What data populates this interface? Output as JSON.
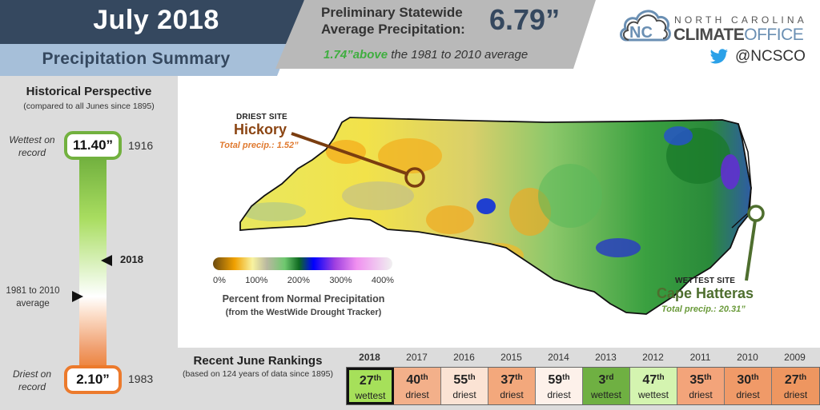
{
  "header": {
    "title": "July 2018",
    "subtitle": "Precipitation Summary",
    "stat_label_line1": "Preliminary Statewide",
    "stat_label_line2": "Average Precipitation:",
    "stat_value": "6.79”",
    "departure_value": "1.74”above",
    "departure_text": " the 1981 to 2010 average"
  },
  "logo": {
    "line1": "NORTH CAROLINA",
    "line2_bold": "CLIMATE",
    "line2_light": "OFFICE",
    "cloud_text": "NC",
    "twitter_handle": "@NCSCO",
    "twitter_icon": "twitter-bird-icon"
  },
  "historical": {
    "title": "Historical Perspective",
    "subtitle": "(compared to all Junes since 1895)",
    "wettest_label_1": "Wettest on",
    "wettest_label_2": "record",
    "wettest_value": "11.40”",
    "wettest_year": "1916",
    "current_year": "2018",
    "average_label_1": "1981 to 2010",
    "average_label_2": "average",
    "driest_label_1": "Driest on",
    "driest_label_2": "record",
    "driest_value": "2.10”",
    "driest_year": "1983",
    "colors": {
      "wet": "#72b13f",
      "dry": "#ec7a2c"
    }
  },
  "map": {
    "driest_site": {
      "kicker": "DRIEST SITE",
      "name": "Hickory",
      "total": "Total precip.: 1.52”",
      "color": "#8b4513"
    },
    "wettest_site": {
      "kicker": "WETTEST SITE",
      "name": "Cape Hatteras",
      "total": "Total precip.: 20.31”",
      "color": "#4e6e2e"
    },
    "legend": {
      "ticks": [
        "0%",
        "100%",
        "200%",
        "300%",
        "400%"
      ],
      "title": "Percent from Normal Precipitation",
      "subtitle": "(from the WestWide Drought Tracker)"
    }
  },
  "rankings": {
    "title": "Recent June Rankings",
    "subtitle": "(based on 124 years of data since 1895)",
    "items": [
      {
        "year": "2018",
        "num": "27",
        "suffix": "th",
        "kind": "wettest",
        "color": "#a6e05a",
        "current": true
      },
      {
        "year": "2017",
        "num": "40",
        "suffix": "th",
        "kind": "driest",
        "color": "#f3b08a"
      },
      {
        "year": "2016",
        "num": "55",
        "suffix": "th",
        "kind": "driest",
        "color": "#fbe3d4"
      },
      {
        "year": "2015",
        "num": "37",
        "suffix": "th",
        "kind": "driest",
        "color": "#f3a87c"
      },
      {
        "year": "2014",
        "num": "59",
        "suffix": "th",
        "kind": "driest",
        "color": "#fdf1ea"
      },
      {
        "year": "2013",
        "num": "3",
        "suffix": "rd",
        "kind": "wettest",
        "color": "#6fb042"
      },
      {
        "year": "2012",
        "num": "47",
        "suffix": "th",
        "kind": "wettest",
        "color": "#d4f4b0"
      },
      {
        "year": "2011",
        "num": "35",
        "suffix": "th",
        "kind": "driest",
        "color": "#f3a47a"
      },
      {
        "year": "2010",
        "num": "30",
        "suffix": "th",
        "kind": "driest",
        "color": "#f09a68"
      },
      {
        "year": "2009",
        "num": "27",
        "suffix": "th",
        "kind": "driest",
        "color": "#ee9660"
      }
    ]
  }
}
